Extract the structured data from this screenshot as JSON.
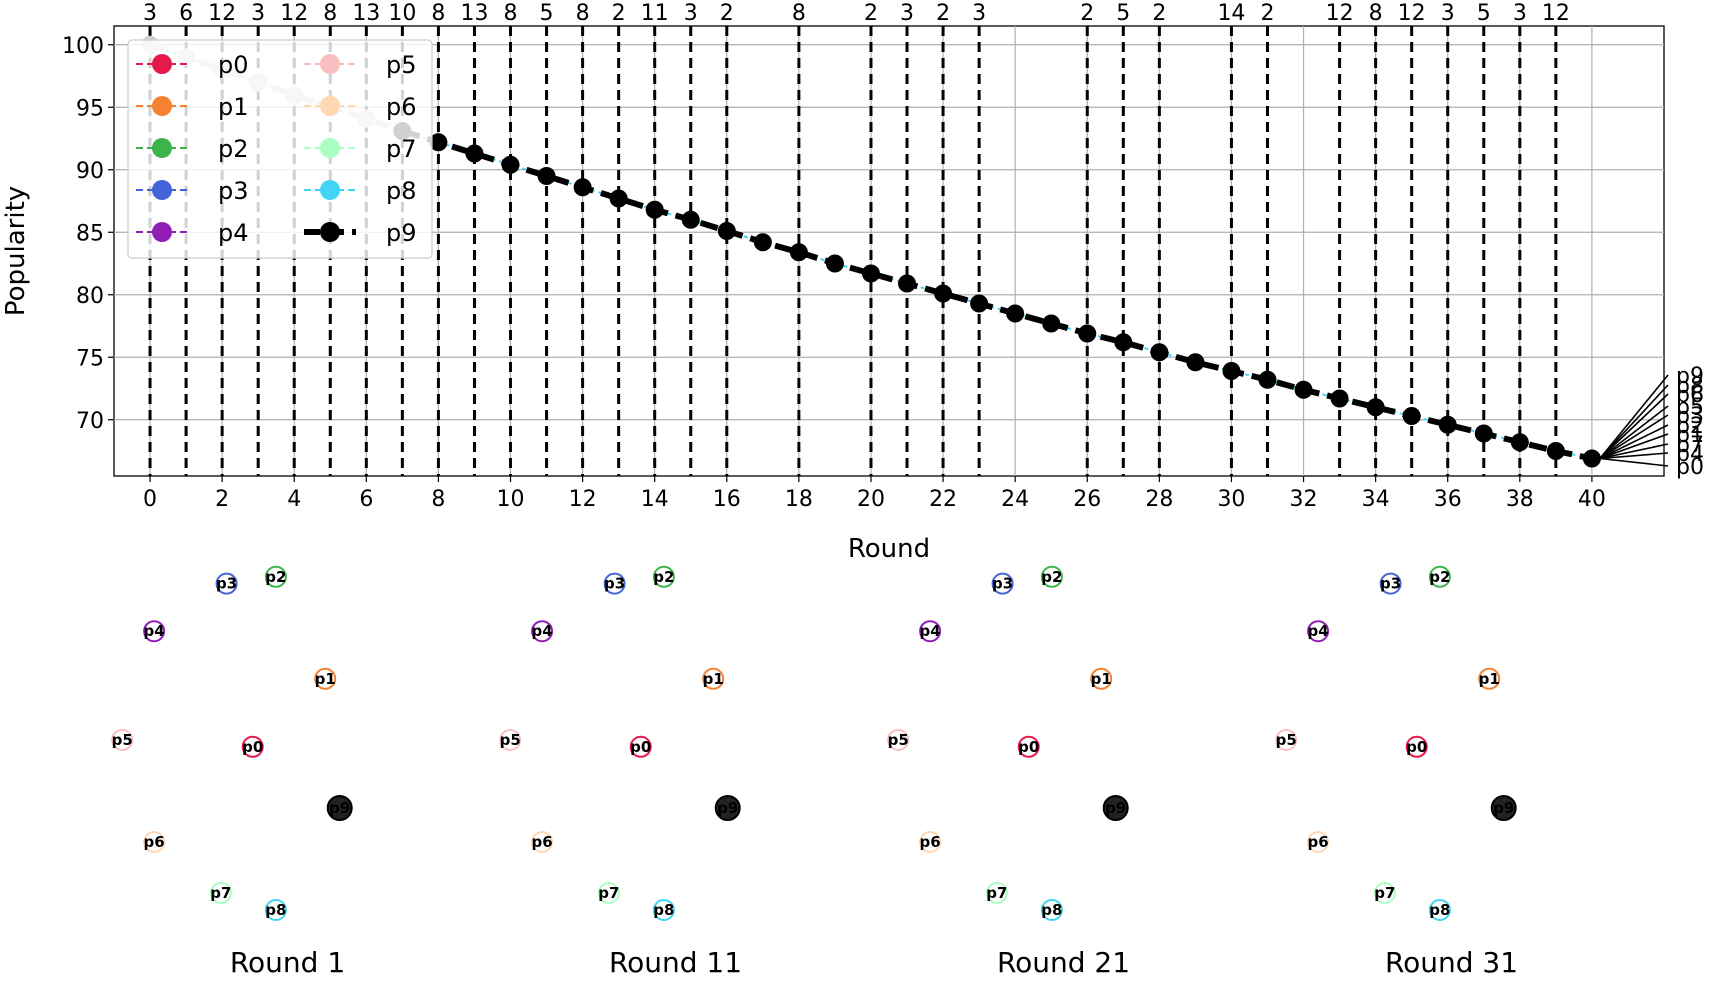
{
  "chart_data": {
    "type": "line",
    "xlabel": "Round",
    "ylabel": "Popularity",
    "xlim": [
      -1,
      42
    ],
    "ylim": [
      65.5,
      101.5
    ],
    "xticks": [
      0,
      2,
      4,
      6,
      8,
      10,
      12,
      14,
      16,
      18,
      20,
      22,
      24,
      26,
      28,
      30,
      32,
      34,
      36,
      38,
      40
    ],
    "yticks": [
      70,
      75,
      80,
      85,
      90,
      95,
      100
    ],
    "grid": true,
    "legend": {
      "placement": "top-left",
      "entries": [
        {
          "name": "p0",
          "color": "#e6194b"
        },
        {
          "name": "p1",
          "color": "#f58231"
        },
        {
          "name": "p2",
          "color": "#3cb44b"
        },
        {
          "name": "p3",
          "color": "#4363d8"
        },
        {
          "name": "p4",
          "color": "#911eb4"
        },
        {
          "name": "p5",
          "color": "#fabebe"
        },
        {
          "name": "p6",
          "color": "#ffd8b1"
        },
        {
          "name": "p7",
          "color": "#aaffc3"
        },
        {
          "name": "p8",
          "color": "#42d4f4"
        },
        {
          "name": "p9",
          "color": "#000000"
        }
      ]
    },
    "series": [
      {
        "name": "p9",
        "color": "#000000",
        "x": [
          0,
          1,
          2,
          3,
          4,
          5,
          6,
          7,
          8,
          9,
          10,
          11,
          12,
          13,
          14,
          15,
          16,
          17,
          18,
          19,
          20,
          21,
          22,
          23,
          24,
          25,
          26,
          27,
          28,
          29,
          30,
          31,
          32,
          33,
          34,
          35,
          36,
          37,
          38,
          39,
          40
        ],
        "values": [
          100,
          99,
          98,
          97,
          96,
          95,
          94.1,
          93.1,
          92.2,
          91.3,
          90.4,
          89.5,
          88.6,
          87.7,
          86.8,
          86.0,
          85.1,
          84.2,
          83.4,
          82.5,
          81.7,
          80.9,
          80.1,
          79.3,
          78.5,
          77.7,
          76.9,
          76.2,
          75.4,
          74.6,
          73.9,
          73.2,
          72.4,
          71.7,
          71.0,
          70.3,
          69.6,
          68.9,
          68.2,
          67.5,
          66.9
        ]
      }
    ],
    "event_lines": [
      {
        "x": 0,
        "label": "3"
      },
      {
        "x": 1,
        "label": "6"
      },
      {
        "x": 2,
        "label": "12"
      },
      {
        "x": 3,
        "label": "3"
      },
      {
        "x": 4,
        "label": "12"
      },
      {
        "x": 5,
        "label": "8"
      },
      {
        "x": 6,
        "label": "13"
      },
      {
        "x": 7,
        "label": "10"
      },
      {
        "x": 8,
        "label": "8"
      },
      {
        "x": 9,
        "label": "13"
      },
      {
        "x": 10,
        "label": "8"
      },
      {
        "x": 11,
        "label": "5"
      },
      {
        "x": 12,
        "label": "8"
      },
      {
        "x": 13,
        "label": "2"
      },
      {
        "x": 14,
        "label": "11"
      },
      {
        "x": 15,
        "label": "3"
      },
      {
        "x": 16,
        "label": "2"
      },
      {
        "x": 18,
        "label": "8"
      },
      {
        "x": 20,
        "label": "2"
      },
      {
        "x": 21,
        "label": "3"
      },
      {
        "x": 22,
        "label": "2"
      },
      {
        "x": 23,
        "label": "3"
      },
      {
        "x": 26,
        "label": "2"
      },
      {
        "x": 27,
        "label": "5"
      },
      {
        "x": 28,
        "label": "2"
      },
      {
        "x": 30,
        "label": "14"
      },
      {
        "x": 31,
        "label": "2"
      },
      {
        "x": 33,
        "label": "12"
      },
      {
        "x": 34,
        "label": "8"
      },
      {
        "x": 35,
        "label": "12"
      },
      {
        "x": 36,
        "label": "3"
      },
      {
        "x": 37,
        "label": "5"
      },
      {
        "x": 38,
        "label": "3"
      },
      {
        "x": 39,
        "label": "12"
      }
    ],
    "end_labels": [
      "p9",
      "p8",
      "p6",
      "p5",
      "p3",
      "p2",
      "p1",
      "p7",
      "p4",
      "p0"
    ],
    "network_panels": [
      {
        "title": "Round 1",
        "nodes": [
          {
            "name": "p0",
            "color": "#e6194b",
            "x": 0.43,
            "y": 0.52
          },
          {
            "name": "p1",
            "color": "#f58231",
            "x": 0.68,
            "y": 0.32
          },
          {
            "name": "p2",
            "color": "#3cb44b",
            "x": 0.51,
            "y": 0.02
          },
          {
            "name": "p3",
            "color": "#4363d8",
            "x": 0.34,
            "y": 0.04
          },
          {
            "name": "p4",
            "color": "#911eb4",
            "x": 0.09,
            "y": 0.18
          },
          {
            "name": "p5",
            "color": "#fabebe",
            "x": -0.02,
            "y": 0.5
          },
          {
            "name": "p6",
            "color": "#ffd8b1",
            "x": 0.09,
            "y": 0.8
          },
          {
            "name": "p7",
            "color": "#aaffc3",
            "x": 0.32,
            "y": 0.95
          },
          {
            "name": "p8",
            "color": "#42d4f4",
            "x": 0.51,
            "y": 1.0
          },
          {
            "name": "p9",
            "color": "#000000",
            "x": 0.73,
            "y": 0.7
          }
        ]
      },
      {
        "title": "Round 11",
        "nodes": [
          {
            "name": "p0",
            "color": "#e6194b",
            "x": 0.43,
            "y": 0.52
          },
          {
            "name": "p1",
            "color": "#f58231",
            "x": 0.68,
            "y": 0.32
          },
          {
            "name": "p2",
            "color": "#3cb44b",
            "x": 0.51,
            "y": 0.02
          },
          {
            "name": "p3",
            "color": "#4363d8",
            "x": 0.34,
            "y": 0.04
          },
          {
            "name": "p4",
            "color": "#911eb4",
            "x": 0.09,
            "y": 0.18
          },
          {
            "name": "p5",
            "color": "#fabebe",
            "x": -0.02,
            "y": 0.5
          },
          {
            "name": "p6",
            "color": "#ffd8b1",
            "x": 0.09,
            "y": 0.8
          },
          {
            "name": "p7",
            "color": "#aaffc3",
            "x": 0.32,
            "y": 0.95
          },
          {
            "name": "p8",
            "color": "#42d4f4",
            "x": 0.51,
            "y": 1.0
          },
          {
            "name": "p9",
            "color": "#000000",
            "x": 0.73,
            "y": 0.7
          }
        ]
      },
      {
        "title": "Round 21",
        "nodes": [
          {
            "name": "p0",
            "color": "#e6194b",
            "x": 0.43,
            "y": 0.52
          },
          {
            "name": "p1",
            "color": "#f58231",
            "x": 0.68,
            "y": 0.32
          },
          {
            "name": "p2",
            "color": "#3cb44b",
            "x": 0.51,
            "y": 0.02
          },
          {
            "name": "p3",
            "color": "#4363d8",
            "x": 0.34,
            "y": 0.04
          },
          {
            "name": "p4",
            "color": "#911eb4",
            "x": 0.09,
            "y": 0.18
          },
          {
            "name": "p5",
            "color": "#fabebe",
            "x": -0.02,
            "y": 0.5
          },
          {
            "name": "p6",
            "color": "#ffd8b1",
            "x": 0.09,
            "y": 0.8
          },
          {
            "name": "p7",
            "color": "#aaffc3",
            "x": 0.32,
            "y": 0.95
          },
          {
            "name": "p8",
            "color": "#42d4f4",
            "x": 0.51,
            "y": 1.0
          },
          {
            "name": "p9",
            "color": "#000000",
            "x": 0.73,
            "y": 0.7
          }
        ]
      },
      {
        "title": "Round 31",
        "nodes": [
          {
            "name": "p0",
            "color": "#e6194b",
            "x": 0.43,
            "y": 0.52
          },
          {
            "name": "p1",
            "color": "#f58231",
            "x": 0.68,
            "y": 0.32
          },
          {
            "name": "p2",
            "color": "#3cb44b",
            "x": 0.51,
            "y": 0.02
          },
          {
            "name": "p3",
            "color": "#4363d8",
            "x": 0.34,
            "y": 0.04
          },
          {
            "name": "p4",
            "color": "#911eb4",
            "x": 0.09,
            "y": 0.18
          },
          {
            "name": "p5",
            "color": "#fabebe",
            "x": -0.02,
            "y": 0.5
          },
          {
            "name": "p6",
            "color": "#ffd8b1",
            "x": 0.09,
            "y": 0.8
          },
          {
            "name": "p7",
            "color": "#aaffc3",
            "x": 0.32,
            "y": 0.95
          },
          {
            "name": "p8",
            "color": "#42d4f4",
            "x": 0.51,
            "y": 1.0
          },
          {
            "name": "p9",
            "color": "#000000",
            "x": 0.73,
            "y": 0.7
          }
        ]
      }
    ]
  }
}
